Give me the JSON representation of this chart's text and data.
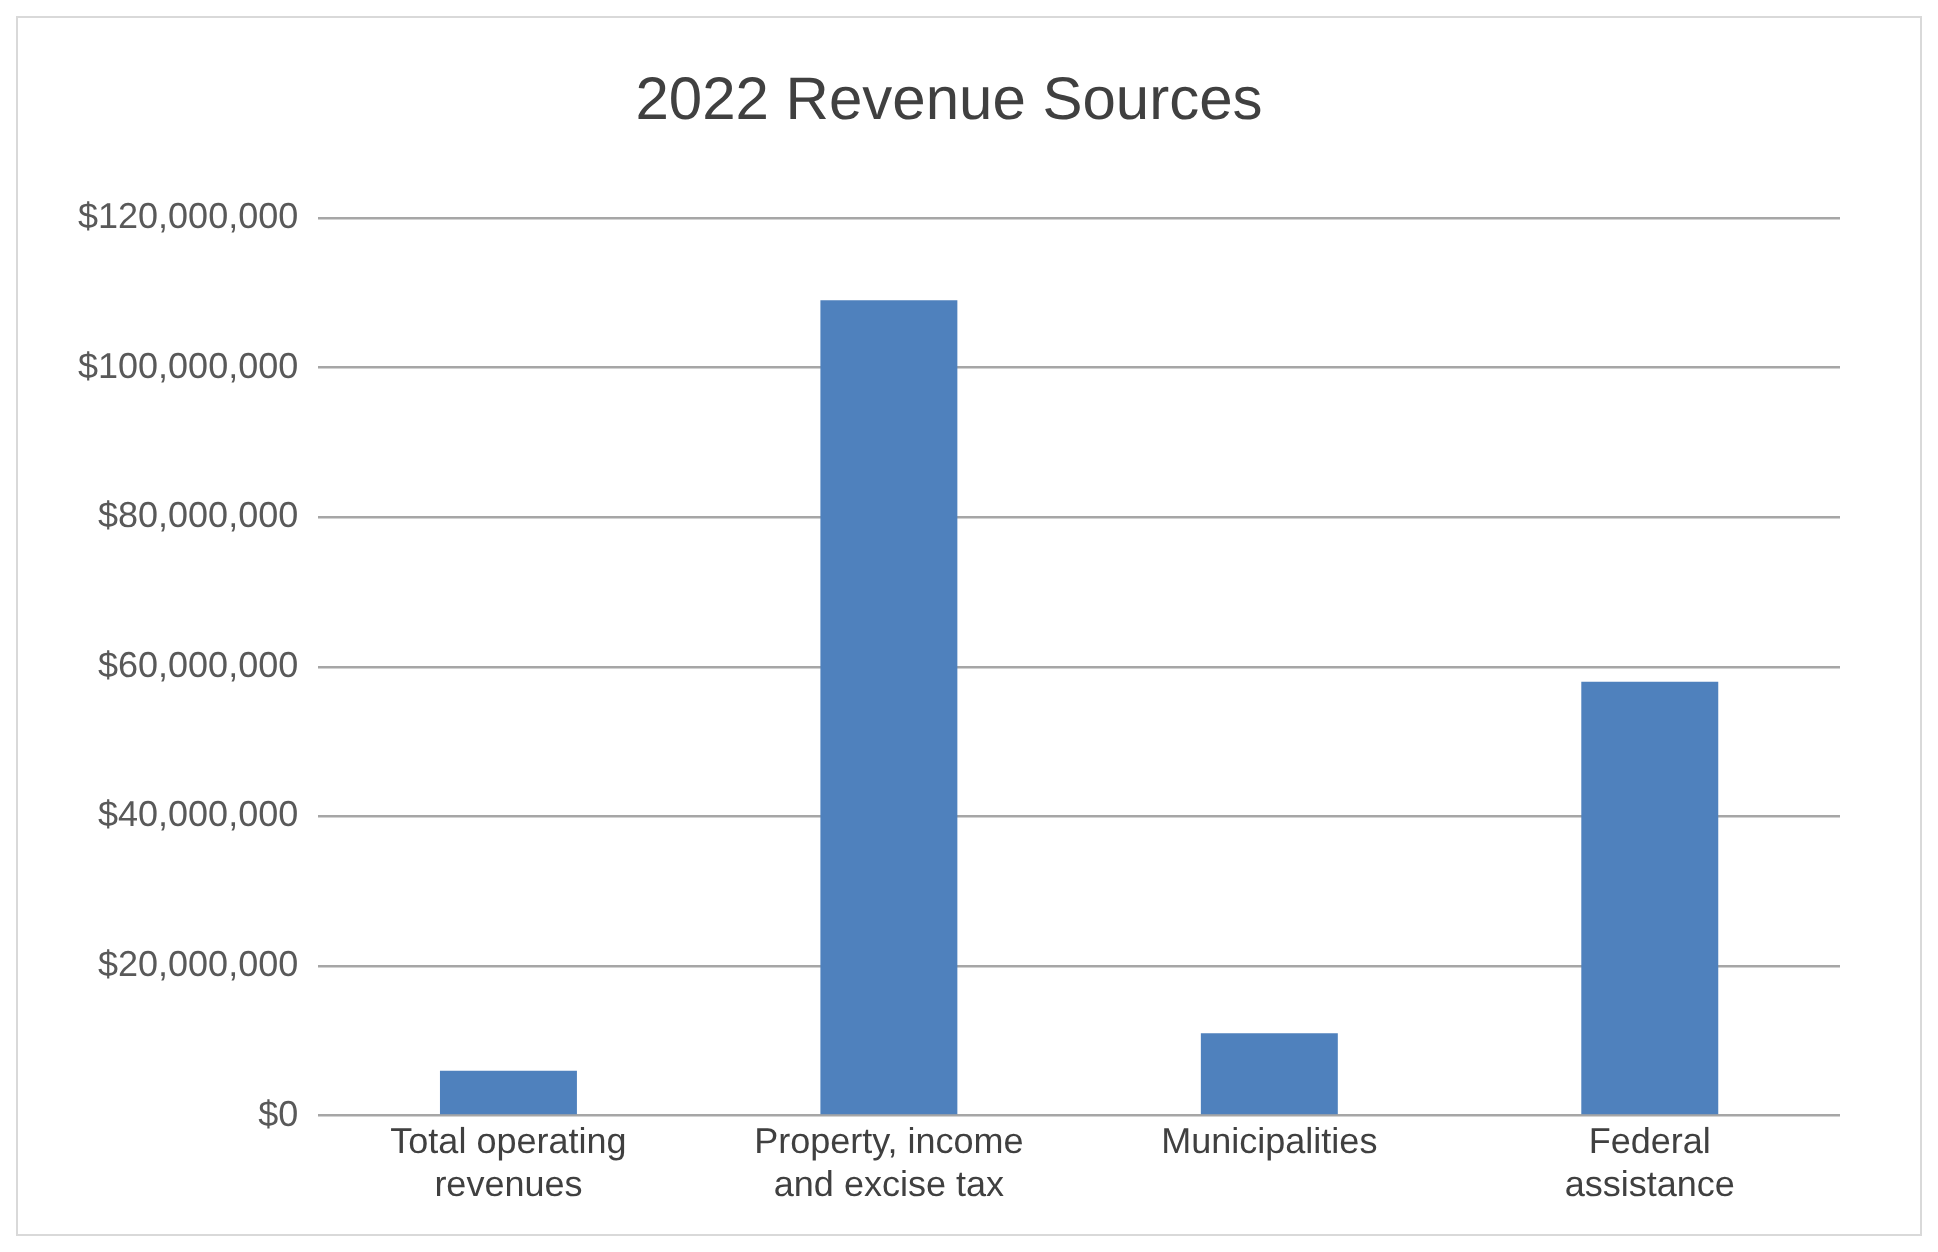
{
  "chart_data": {
    "type": "bar",
    "title": "2022 Revenue Sources",
    "categories": [
      "Total operating revenues",
      "Property, income and excise tax",
      "Municipalities",
      "Federal assistance"
    ],
    "values": [
      6000000,
      109000000,
      11000000,
      58000000
    ],
    "color": "#4f81bd",
    "ylim": [
      0,
      120000000
    ],
    "yticks": [
      {
        "value": 0,
        "label": "$0"
      },
      {
        "value": 20000000,
        "label": "$20,000,000"
      },
      {
        "value": 40000000,
        "label": "$40,000,000"
      },
      {
        "value": 60000000,
        "label": "$60,000,000"
      },
      {
        "value": 80000000,
        "label": "$80,000,000"
      },
      {
        "value": 100000000,
        "label": "$100,000,000"
      },
      {
        "value": 120000000,
        "label": "$120,000,000"
      }
    ],
    "grid": "y"
  }
}
